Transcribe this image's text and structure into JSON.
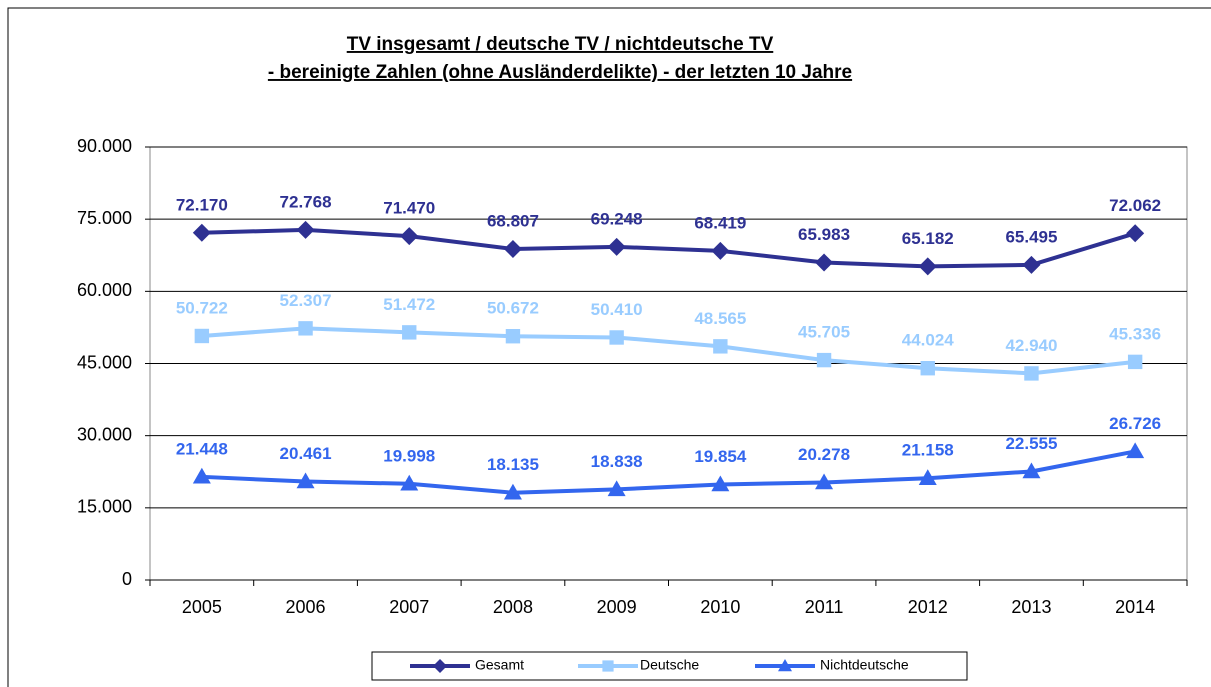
{
  "chart_data": {
    "type": "line",
    "title": "TV insgesamt  / deutsche  TV / nichtdeutsche  TV",
    "subtitle": "- bereinigte  Zahlen  (ohne  Ausländerdelikte)  - der letzten 10 Jahre",
    "categories": [
      "2005",
      "2006",
      "2007",
      "2008",
      "2009",
      "2010",
      "2011",
      "2012",
      "2013",
      "2014"
    ],
    "series": [
      {
        "name": "Gesamt",
        "color": "#2e3192",
        "marker": "diamond",
        "values": [
          72170,
          72768,
          71470,
          68807,
          69248,
          68419,
          65983,
          65182,
          65495,
          72062
        ],
        "value_labels": [
          "72.170",
          "72.768",
          "71.470",
          "68.807",
          "69.248",
          "68.419",
          "65.983",
          "65.182",
          "65.495",
          "72.062"
        ]
      },
      {
        "name": "Deutsche",
        "color": "#99ccff",
        "marker": "square",
        "values": [
          50722,
          52307,
          51472,
          50672,
          50410,
          48565,
          45705,
          44024,
          42940,
          45336
        ],
        "value_labels": [
          "50.722",
          "52.307",
          "51.472",
          "50.672",
          "50.410",
          "48.565",
          "45.705",
          "44.024",
          "42.940",
          "45.336"
        ]
      },
      {
        "name": "Nichtdeutsche",
        "color": "#3366ee",
        "marker": "triangle",
        "values": [
          21448,
          20461,
          19998,
          18135,
          18838,
          19854,
          20278,
          21158,
          22555,
          26726
        ],
        "value_labels": [
          "21.448",
          "20.461",
          "19.998",
          "18.135",
          "18.838",
          "19.854",
          "20.278",
          "21.158",
          "22.555",
          "26.726"
        ]
      }
    ],
    "ylim": [
      0,
      90000
    ],
    "yticks": [
      0,
      {
        "value": 15000,
        "label": "15.000"
      },
      {
        "value": 30000,
        "label": "30.000"
      },
      {
        "value": 45000,
        "label": "45.000"
      },
      {
        "value": 60000,
        "label": "60.000"
      },
      {
        "value": 75000,
        "label": "75.000"
      },
      {
        "value": 90000,
        "label": "90.000"
      }
    ],
    "grid": true,
    "legend": "bottom"
  }
}
